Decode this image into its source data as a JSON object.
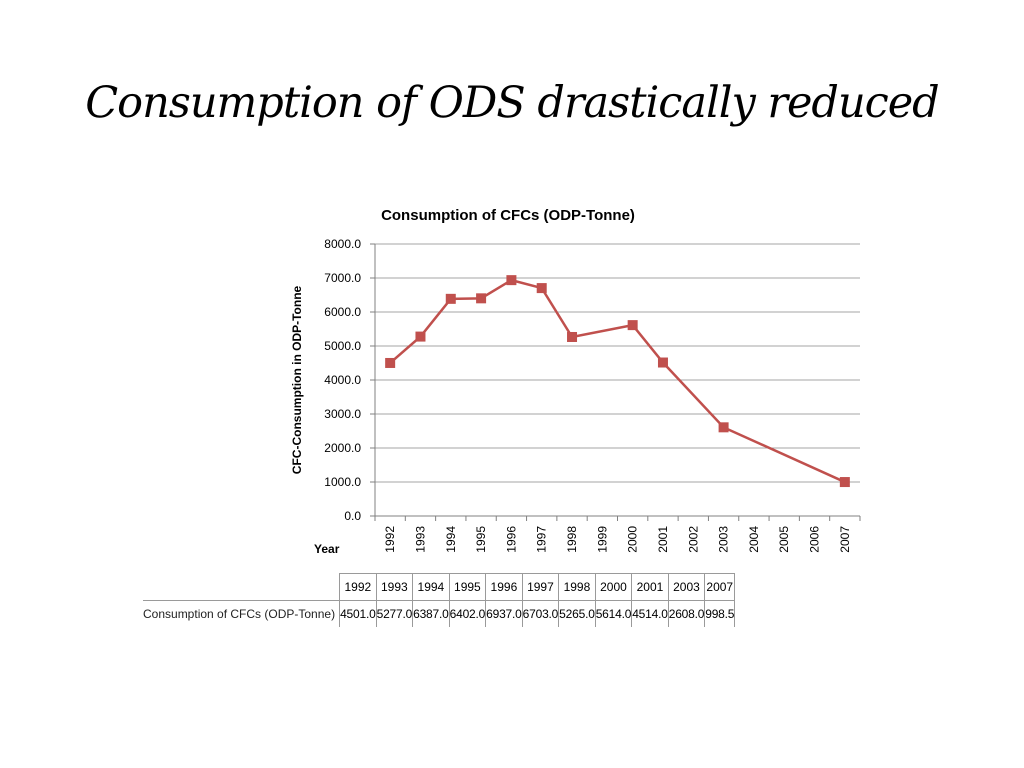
{
  "slide": {
    "title": "Consumption of ODS drastically reduced"
  },
  "chart_data": {
    "type": "line",
    "title": "Consumption of CFCs (ODP-Tonne)",
    "xlabel": "Year",
    "ylabel": "CFC-Consumption in ODP-Tonne",
    "ylim": [
      0,
      8000
    ],
    "yticks": [
      "0.0",
      "1000.0",
      "2000.0",
      "3000.0",
      "4000.0",
      "5000.0",
      "6000.0",
      "7000.0",
      "8000.0"
    ],
    "grid": true,
    "categories": [
      "1992",
      "1993",
      "1994",
      "1995",
      "1996",
      "1997",
      "1998",
      "1999",
      "2000",
      "2001",
      "2002",
      "2003",
      "2004",
      "2005",
      "2006",
      "2007"
    ],
    "series": [
      {
        "name": "Consumption of CFCs (ODP-Tonne)",
        "color": "#c0504d",
        "points": [
          {
            "x": "1992",
            "y": 4501.0
          },
          {
            "x": "1993",
            "y": 5277.0
          },
          {
            "x": "1994",
            "y": 6387.0
          },
          {
            "x": "1995",
            "y": 6402.0
          },
          {
            "x": "1996",
            "y": 6937.0
          },
          {
            "x": "1997",
            "y": 6703.0
          },
          {
            "x": "1998",
            "y": 5265.0
          },
          {
            "x": "2000",
            "y": 5614.0
          },
          {
            "x": "2001",
            "y": 4514.0
          },
          {
            "x": "2003",
            "y": 2608.0
          },
          {
            "x": "2007",
            "y": 998.5
          }
        ]
      }
    ],
    "table": {
      "years": [
        "1992",
        "1993",
        "1994",
        "1995",
        "1996",
        "1997",
        "1998",
        "2000",
        "2001",
        "2003",
        "2007"
      ],
      "row_label": "Consumption of CFCs (ODP-Tonne)",
      "values": [
        "4501.0",
        "5277.0",
        "6387.0",
        "6402.0",
        "6937.0",
        "6703.0",
        "5265.0",
        "5614.0",
        "4514.0",
        "2608.0",
        "998.5"
      ]
    }
  }
}
